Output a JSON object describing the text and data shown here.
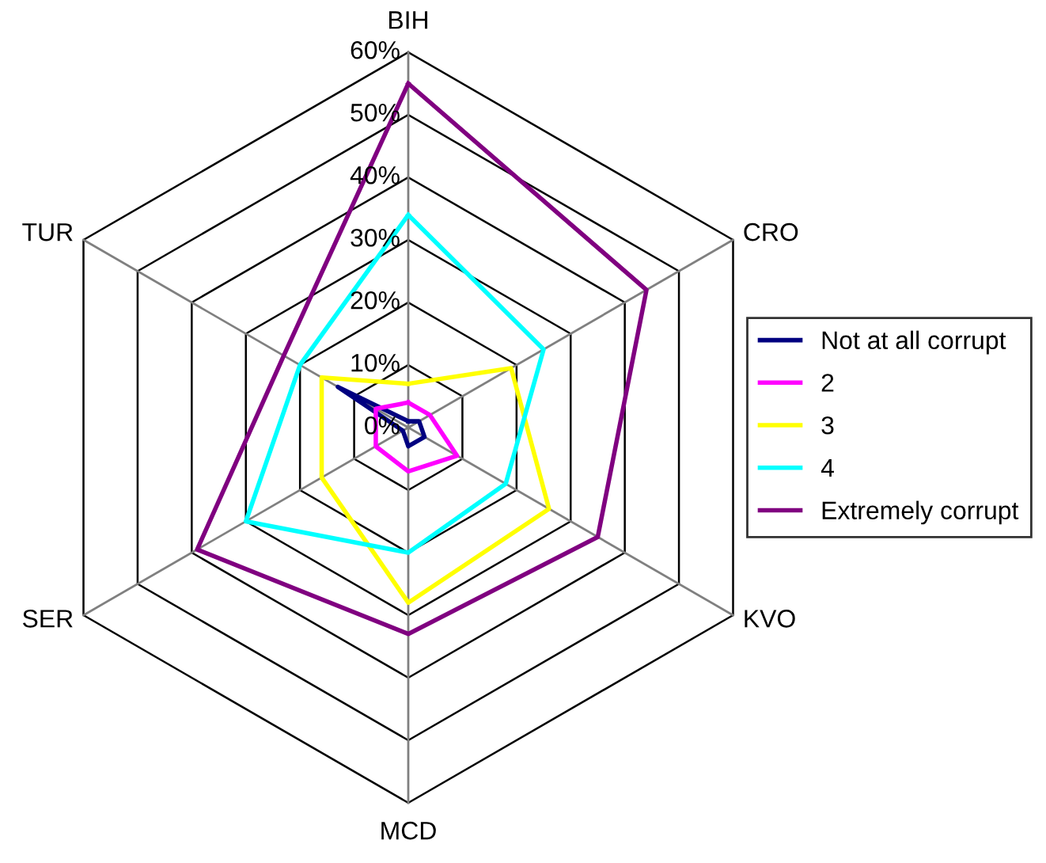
{
  "chart_data": {
    "type": "radar",
    "categories": [
      "BIH",
      "CRO",
      "KVO",
      "MCD",
      "SER",
      "TUR"
    ],
    "ylim": [
      0,
      60
    ],
    "yticks": [
      {
        "value": 0,
        "label": "0%"
      },
      {
        "value": 10,
        "label": "10%"
      },
      {
        "value": 20,
        "label": "20%"
      },
      {
        "value": 30,
        "label": "30%"
      },
      {
        "value": 40,
        "label": "40%"
      },
      {
        "value": 50,
        "label": "50%"
      },
      {
        "value": 60,
        "label": "60%"
      }
    ],
    "series": [
      {
        "name": "Not at all corrupt",
        "color": "#000080",
        "values": [
          1,
          2,
          3,
          3,
          1,
          13
        ]
      },
      {
        "name": "2",
        "color": "#ff00ff",
        "values": [
          4,
          4,
          9,
          7,
          6,
          6
        ]
      },
      {
        "name": "3",
        "color": "#ffff00",
        "values": [
          7,
          19,
          26,
          28,
          16,
          16
        ]
      },
      {
        "name": "4",
        "color": "#00ffff",
        "values": [
          34,
          25,
          18,
          20,
          30,
          20
        ]
      },
      {
        "name": "Extremely corrupt",
        "color": "#800080",
        "values": [
          55,
          44,
          35,
          33,
          39,
          23
        ]
      }
    ],
    "legend": "right",
    "grid": true
  }
}
